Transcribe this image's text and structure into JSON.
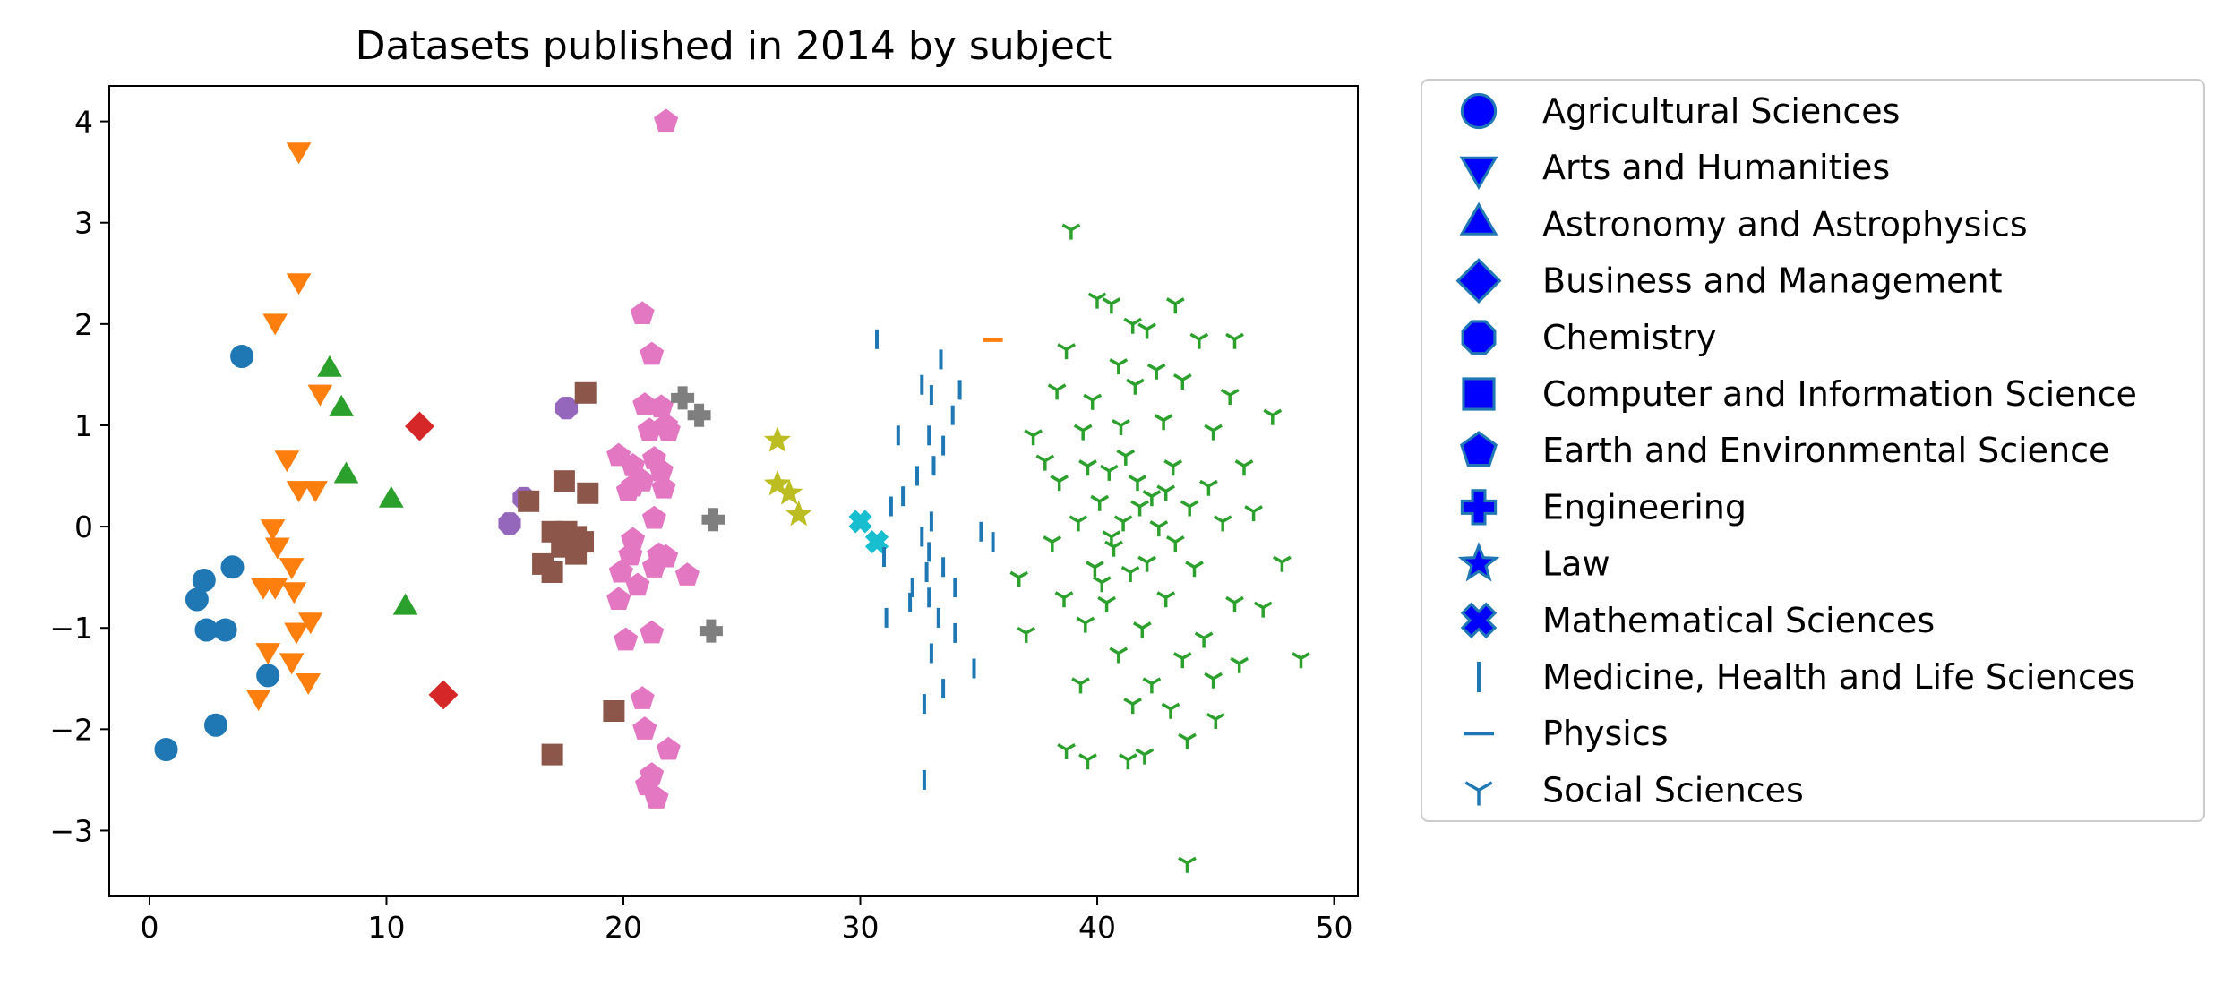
{
  "chart_data": {
    "type": "scatter",
    "title": "Datasets published in 2014 by subject",
    "xlabel": "",
    "ylabel": "",
    "xlim": [
      -1.7,
      51.0
    ],
    "ylim": [
      -3.65,
      4.35
    ],
    "xticks": [
      0,
      10,
      20,
      30,
      40,
      50
    ],
    "yticks": [
      -3,
      -2,
      -1,
      0,
      1,
      2,
      3,
      4
    ],
    "ytick_labels": [
      "−3",
      "−2",
      "−1",
      "0",
      "1",
      "2",
      "3",
      "4"
    ],
    "grid": false,
    "legend_position": "outside-right",
    "legend_colors": {
      "face": "#0000ff",
      "edge": "#1f77b4"
    },
    "series": [
      {
        "name": "Agricultural Sciences",
        "marker": "circle",
        "color": "#1f77b4",
        "points": [
          [
            0.7,
            -2.2
          ],
          [
            2.0,
            -0.72
          ],
          [
            2.3,
            -0.53
          ],
          [
            2.4,
            -1.02
          ],
          [
            2.8,
            -1.96
          ],
          [
            3.2,
            -1.02
          ],
          [
            3.5,
            -0.4
          ],
          [
            3.9,
            1.68
          ],
          [
            5.0,
            -1.47
          ]
        ]
      },
      {
        "name": "Arts and Humanities",
        "marker": "triangle-down",
        "color": "#ff7f0e",
        "points": [
          [
            6.3,
            3.72
          ],
          [
            6.3,
            2.43
          ],
          [
            5.3,
            2.03
          ],
          [
            7.2,
            1.33
          ],
          [
            5.8,
            0.68
          ],
          [
            6.3,
            0.38
          ],
          [
            7.0,
            0.38
          ],
          [
            5.2,
            0.0
          ],
          [
            5.4,
            -0.18
          ],
          [
            6.0,
            -0.38
          ],
          [
            4.8,
            -0.58
          ],
          [
            5.3,
            -0.58
          ],
          [
            6.1,
            -0.62
          ],
          [
            6.8,
            -0.92
          ],
          [
            6.2,
            -1.02
          ],
          [
            5.0,
            -1.22
          ],
          [
            6.0,
            -1.32
          ],
          [
            6.7,
            -1.52
          ],
          [
            4.6,
            -1.68
          ]
        ]
      },
      {
        "name": "Astronomy and Astrophysics",
        "marker": "triangle-up",
        "color": "#2ca02c",
        "points": [
          [
            7.6,
            1.55
          ],
          [
            8.1,
            1.16
          ],
          [
            8.3,
            0.5
          ],
          [
            10.2,
            0.26
          ],
          [
            10.8,
            -0.8
          ]
        ]
      },
      {
        "name": "Business and Management",
        "marker": "diamond",
        "color": "#d62728",
        "points": [
          [
            11.4,
            0.99
          ],
          [
            12.4,
            -1.66
          ]
        ]
      },
      {
        "name": "Chemistry",
        "marker": "octagon",
        "color": "#9467bd",
        "points": [
          [
            15.2,
            0.03
          ],
          [
            15.8,
            0.28
          ],
          [
            17.6,
            1.17
          ]
        ]
      },
      {
        "name": "Computer and Information Science",
        "marker": "square",
        "color": "#8c564b",
        "points": [
          [
            18.4,
            1.32
          ],
          [
            16.0,
            0.25
          ],
          [
            17.5,
            0.45
          ],
          [
            18.5,
            0.33
          ],
          [
            17.0,
            -0.05
          ],
          [
            17.6,
            -0.05
          ],
          [
            18.0,
            -0.1
          ],
          [
            17.4,
            -0.2
          ],
          [
            18.3,
            -0.15
          ],
          [
            18.0,
            -0.27
          ],
          [
            16.6,
            -0.37
          ],
          [
            17.0,
            -0.45
          ],
          [
            19.6,
            -1.82
          ],
          [
            17.0,
            -2.25
          ]
        ]
      },
      {
        "name": "Earth and Environmental Science",
        "marker": "pentagon",
        "color": "#e377c2",
        "points": [
          [
            21.8,
            4.0
          ],
          [
            20.8,
            2.1
          ],
          [
            21.2,
            1.7
          ],
          [
            20.9,
            1.2
          ],
          [
            21.6,
            1.18
          ],
          [
            21.8,
            1.0
          ],
          [
            21.9,
            0.95
          ],
          [
            21.1,
            0.95
          ],
          [
            19.8,
            0.7
          ],
          [
            21.3,
            0.67
          ],
          [
            20.4,
            0.6
          ],
          [
            21.6,
            0.55
          ],
          [
            20.8,
            0.45
          ],
          [
            20.2,
            0.35
          ],
          [
            21.7,
            0.38
          ],
          [
            20.4,
            0.4
          ],
          [
            21.3,
            0.08
          ],
          [
            20.4,
            -0.13
          ],
          [
            20.3,
            -0.28
          ],
          [
            21.5,
            -0.28
          ],
          [
            21.8,
            -0.3
          ],
          [
            21.3,
            -0.4
          ],
          [
            19.9,
            -0.45
          ],
          [
            22.7,
            -0.48
          ],
          [
            20.6,
            -0.58
          ],
          [
            19.8,
            -0.72
          ],
          [
            20.1,
            -1.12
          ],
          [
            21.2,
            -1.05
          ],
          [
            20.8,
            -1.7
          ],
          [
            20.9,
            -2.0
          ],
          [
            21.9,
            -2.2
          ],
          [
            21.2,
            -2.45
          ],
          [
            21.0,
            -2.55
          ],
          [
            21.4,
            -2.68
          ]
        ]
      },
      {
        "name": "Engineering",
        "marker": "plus",
        "color": "#7f7f7f",
        "points": [
          [
            22.5,
            1.27
          ],
          [
            23.2,
            1.1
          ],
          [
            23.8,
            0.07
          ],
          [
            23.7,
            -1.03
          ]
        ]
      },
      {
        "name": "Law",
        "marker": "star",
        "color": "#bcbd22",
        "points": [
          [
            26.5,
            0.85
          ],
          [
            26.5,
            0.42
          ],
          [
            27.0,
            0.33
          ],
          [
            27.4,
            0.12
          ]
        ]
      },
      {
        "name": "Mathematical Sciences",
        "marker": "x",
        "color": "#17becf",
        "points": [
          [
            30.0,
            0.05
          ],
          [
            30.7,
            -0.15
          ]
        ]
      },
      {
        "name": "Medicine, Health and Life Sciences",
        "marker": "vline",
        "color": "#1f77b4",
        "points": [
          [
            30.7,
            1.85
          ],
          [
            33.4,
            1.65
          ],
          [
            32.6,
            1.4
          ],
          [
            33.0,
            1.3
          ],
          [
            34.2,
            1.35
          ],
          [
            33.9,
            1.1
          ],
          [
            31.6,
            0.9
          ],
          [
            32.9,
            0.9
          ],
          [
            33.5,
            0.8
          ],
          [
            32.4,
            0.5
          ],
          [
            33.1,
            0.6
          ],
          [
            31.8,
            0.3
          ],
          [
            31.3,
            0.2
          ],
          [
            33.0,
            0.05
          ],
          [
            32.6,
            -0.1
          ],
          [
            32.9,
            -0.25
          ],
          [
            35.1,
            -0.05
          ],
          [
            35.6,
            -0.15
          ],
          [
            31.0,
            -0.3
          ],
          [
            32.8,
            -0.45
          ],
          [
            33.5,
            -0.4
          ],
          [
            34.0,
            -0.6
          ],
          [
            32.2,
            -0.6
          ],
          [
            32.9,
            -0.7
          ],
          [
            33.3,
            -0.9
          ],
          [
            32.1,
            -0.75
          ],
          [
            31.1,
            -0.9
          ],
          [
            34.0,
            -1.05
          ],
          [
            33.0,
            -1.25
          ],
          [
            34.8,
            -1.4
          ],
          [
            33.5,
            -1.6
          ],
          [
            32.7,
            -1.75
          ],
          [
            32.7,
            -2.5
          ]
        ]
      },
      {
        "name": "Physics",
        "marker": "hline",
        "color": "#ff7f0e",
        "points": [
          [
            35.6,
            1.84
          ]
        ]
      },
      {
        "name": "Social Sciences",
        "marker": "tri-down",
        "color": "#2ca02c",
        "points": [
          [
            38.9,
            2.93
          ],
          [
            43.8,
            -3.32
          ],
          [
            40.0,
            2.25
          ],
          [
            40.6,
            2.2
          ],
          [
            43.3,
            2.2
          ],
          [
            41.5,
            2.0
          ],
          [
            42.1,
            1.95
          ],
          [
            44.3,
            1.85
          ],
          [
            45.8,
            1.85
          ],
          [
            38.7,
            1.75
          ],
          [
            40.9,
            1.6
          ],
          [
            42.5,
            1.55
          ],
          [
            41.6,
            1.4
          ],
          [
            43.6,
            1.45
          ],
          [
            38.3,
            1.35
          ],
          [
            39.8,
            1.25
          ],
          [
            45.6,
            1.3
          ],
          [
            47.4,
            1.1
          ],
          [
            37.3,
            0.9
          ],
          [
            39.4,
            0.95
          ],
          [
            41.0,
            1.0
          ],
          [
            42.8,
            1.05
          ],
          [
            44.9,
            0.95
          ],
          [
            37.8,
            0.65
          ],
          [
            39.6,
            0.6
          ],
          [
            40.5,
            0.55
          ],
          [
            43.2,
            0.6
          ],
          [
            46.2,
            0.6
          ],
          [
            38.4,
            0.45
          ],
          [
            41.7,
            0.45
          ],
          [
            44.7,
            0.4
          ],
          [
            40.1,
            0.25
          ],
          [
            42.3,
            0.3
          ],
          [
            43.9,
            0.2
          ],
          [
            46.6,
            0.15
          ],
          [
            39.2,
            0.05
          ],
          [
            41.1,
            0.05
          ],
          [
            42.6,
            0.0
          ],
          [
            45.3,
            0.05
          ],
          [
            38.1,
            -0.15
          ],
          [
            40.7,
            -0.2
          ],
          [
            43.3,
            -0.15
          ],
          [
            47.8,
            -0.35
          ],
          [
            36.7,
            -0.5
          ],
          [
            39.9,
            -0.4
          ],
          [
            41.4,
            -0.45
          ],
          [
            44.1,
            -0.4
          ],
          [
            38.6,
            -0.7
          ],
          [
            40.4,
            -0.75
          ],
          [
            42.9,
            -0.7
          ],
          [
            45.8,
            -0.75
          ],
          [
            47.0,
            -0.8
          ],
          [
            37.0,
            -1.05
          ],
          [
            39.5,
            -0.95
          ],
          [
            41.9,
            -1.0
          ],
          [
            44.5,
            -1.1
          ],
          [
            40.9,
            -1.25
          ],
          [
            43.6,
            -1.3
          ],
          [
            46.0,
            -1.35
          ],
          [
            48.6,
            -1.3
          ],
          [
            39.3,
            -1.55
          ],
          [
            42.3,
            -1.55
          ],
          [
            44.9,
            -1.5
          ],
          [
            41.5,
            -1.75
          ],
          [
            43.1,
            -1.8
          ],
          [
            45.0,
            -1.9
          ],
          [
            38.7,
            -2.2
          ],
          [
            39.6,
            -2.3
          ],
          [
            41.3,
            -2.3
          ],
          [
            42.0,
            -2.25
          ],
          [
            43.8,
            -2.1
          ],
          [
            40.6,
            -0.1
          ],
          [
            41.8,
            0.2
          ],
          [
            40.2,
            -0.55
          ],
          [
            42.1,
            -0.35
          ],
          [
            41.2,
            0.7
          ],
          [
            42.9,
            0.35
          ]
        ]
      }
    ]
  }
}
